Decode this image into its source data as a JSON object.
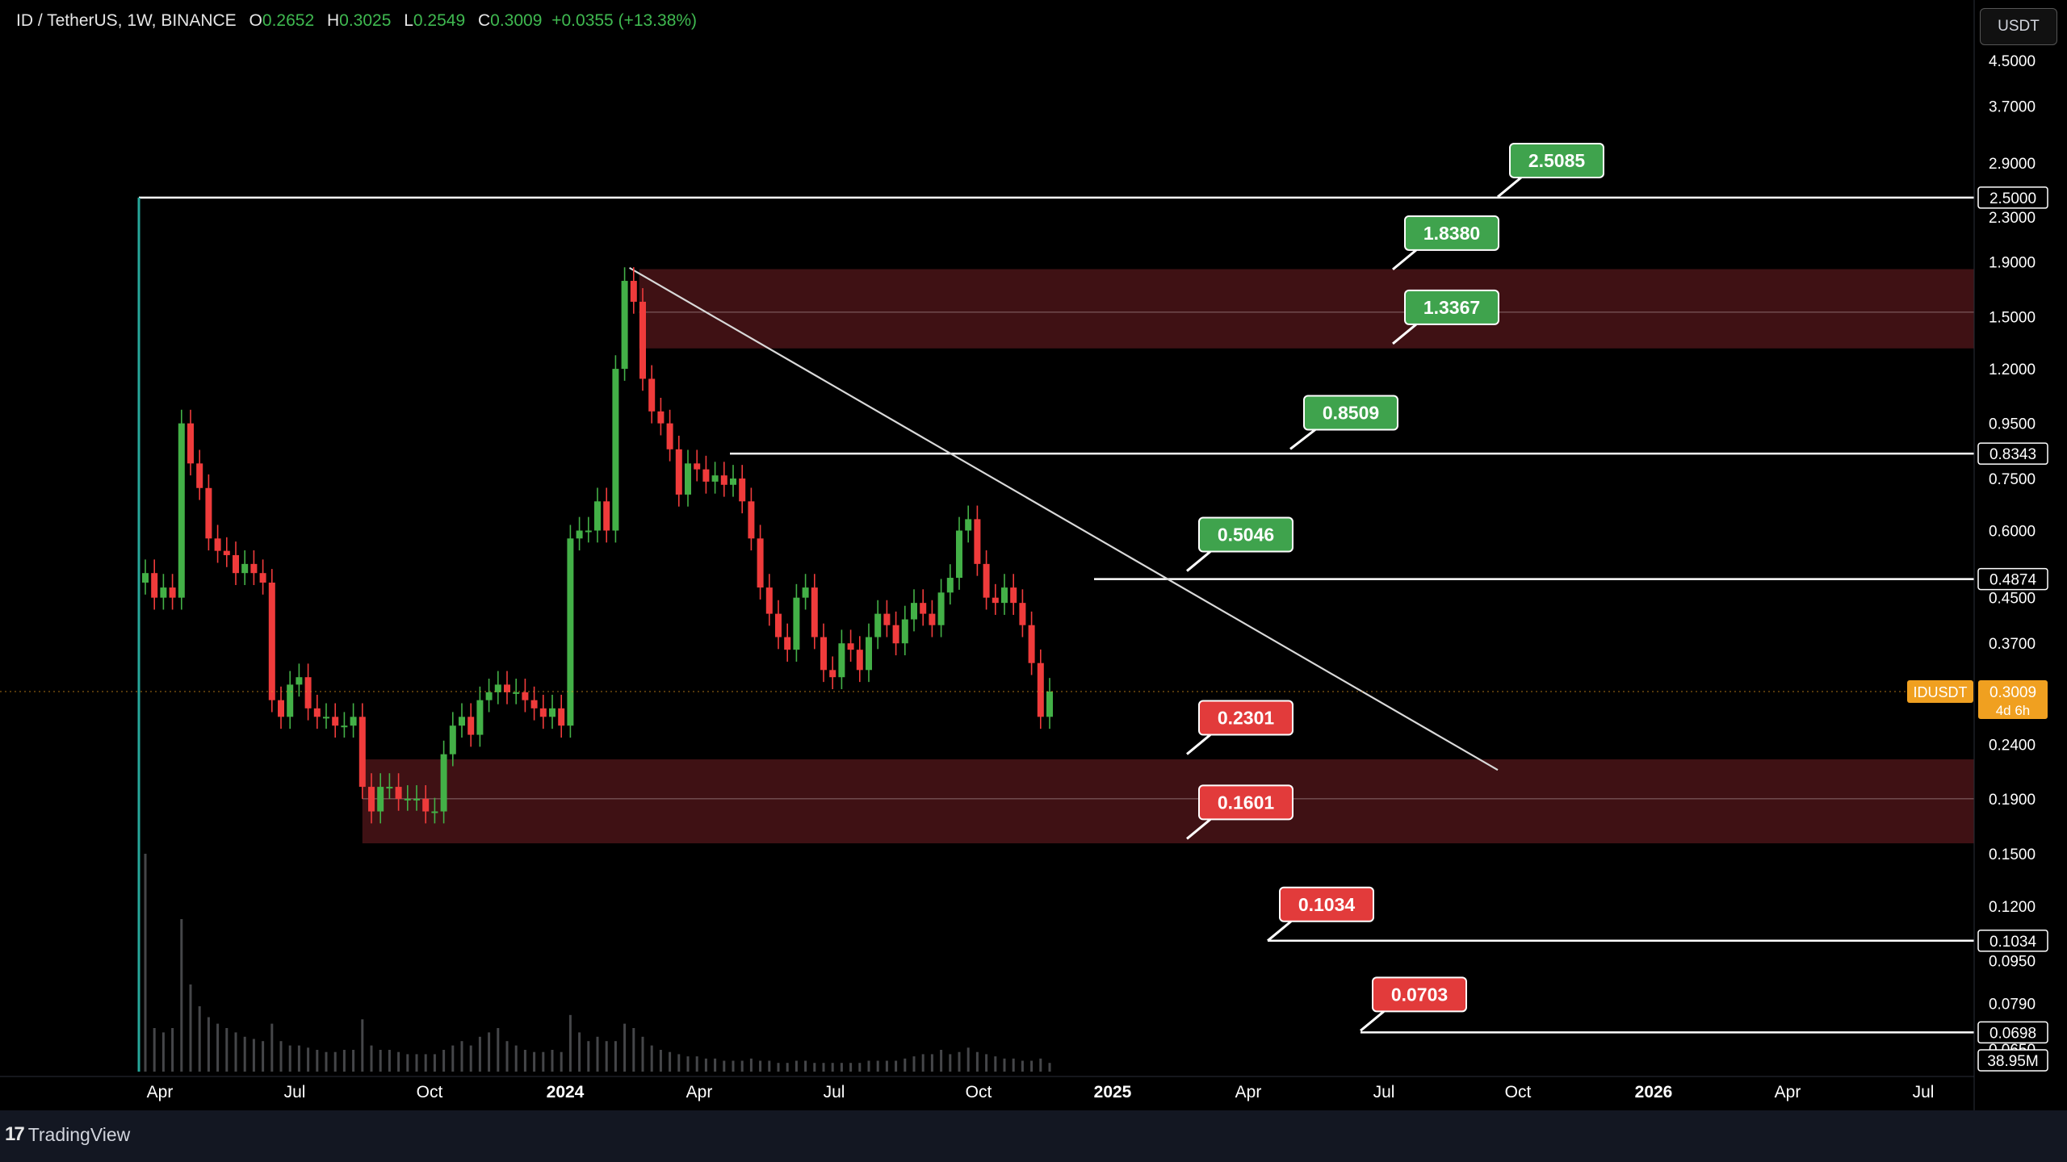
{
  "legend": {
    "symbol": "ID / TetherUS, 1W, BINANCE",
    "open_label": "O",
    "open": "0.2652",
    "high_label": "H",
    "high": "0.3025",
    "low_label": "L",
    "low": "0.2549",
    "close_label": "C",
    "close": "0.3009",
    "change": "+0.0355 (+13.38%)"
  },
  "currency_button": "USDT",
  "brand": {
    "logo": "17",
    "name": "TradingView"
  },
  "chart_data": {
    "type": "candlestick",
    "symbol": "IDUSDT",
    "scale": "log",
    "y_ticks": [
      {
        "value": 4.5,
        "label": "4.5000"
      },
      {
        "value": 3.7,
        "label": "3.7000"
      },
      {
        "value": 2.9,
        "label": "2.9000"
      },
      {
        "value": 2.3,
        "label": "2.3000"
      },
      {
        "value": 1.9,
        "label": "1.9000"
      },
      {
        "value": 1.5,
        "label": "1.5000"
      },
      {
        "value": 1.2,
        "label": "1.2000"
      },
      {
        "value": 0.95,
        "label": "0.9500"
      },
      {
        "value": 0.75,
        "label": "0.7500"
      },
      {
        "value": 0.6,
        "label": "0.6000"
      },
      {
        "value": 0.45,
        "label": "0.4500"
      },
      {
        "value": 0.37,
        "label": "0.3700"
      },
      {
        "value": 0.24,
        "label": "0.2400"
      },
      {
        "value": 0.19,
        "label": "0.1900"
      },
      {
        "value": 0.15,
        "label": "0.1500"
      },
      {
        "value": 0.12,
        "label": "0.1200"
      },
      {
        "value": 0.095,
        "label": "0.0950"
      },
      {
        "value": 0.079,
        "label": "0.0790"
      },
      {
        "value": 0.065,
        "label": "0.0650"
      }
    ],
    "x_ticks": [
      "Apr",
      "Jul",
      "Oct",
      "2024",
      "Apr",
      "Jul",
      "Oct",
      "2025",
      "Apr",
      "Jul",
      "Oct",
      "2026",
      "Apr",
      "Jul"
    ],
    "price_label": {
      "symbol": "IDUSDT",
      "value": "0.3009",
      "countdown": "4d 6h",
      "y": 0.3009,
      "color": "#f0a020"
    },
    "volume_label": "38.95M",
    "horizontal_levels": [
      {
        "y": 2.5,
        "label": "2.5000"
      },
      {
        "y": 0.8343,
        "label": "0.8343"
      },
      {
        "y": 0.4874,
        "label": "0.4874"
      },
      {
        "y": 0.1034,
        "label": "0.1034"
      },
      {
        "y": 0.0698,
        "label": "0.0698"
      }
    ],
    "zones": [
      {
        "y_low": 1.31,
        "y_high": 1.84,
        "mid": 1.53,
        "color": "#4a1418"
      },
      {
        "y_low": 0.157,
        "y_high": 0.225,
        "mid": 0.19,
        "color": "#4a1418"
      }
    ],
    "trendline": {
      "start_week": 0,
      "start_y": 1.85,
      "end_week": 81,
      "end_y": 0.215
    },
    "targets": [
      {
        "label": "2.5085",
        "y": 2.5085,
        "kind": "up"
      },
      {
        "label": "1.8380",
        "y": 1.838,
        "kind": "up"
      },
      {
        "label": "1.3367",
        "y": 1.3367,
        "kind": "up"
      },
      {
        "label": "0.8509",
        "y": 0.8509,
        "kind": "up"
      },
      {
        "label": "0.5046",
        "y": 0.5046,
        "kind": "up"
      },
      {
        "label": "0.2301",
        "y": 0.2301,
        "kind": "down"
      },
      {
        "label": "0.1601",
        "y": 0.1601,
        "kind": "down"
      },
      {
        "label": "0.1034",
        "y": 0.1034,
        "kind": "down"
      },
      {
        "label": "0.0703",
        "y": 0.0703,
        "kind": "down"
      }
    ],
    "colors": {
      "up": "#26a69a",
      "up_bright": "#43b047",
      "down": "#ef3b3b",
      "up_target": "#3fa34d",
      "down_target": "#e23b3b"
    },
    "candles_close": [
      0.5,
      0.45,
      0.47,
      0.45,
      0.95,
      0.8,
      0.72,
      0.58,
      0.55,
      0.54,
      0.5,
      0.52,
      0.5,
      0.48,
      0.29,
      0.27,
      0.31,
      0.32,
      0.28,
      0.27,
      0.27,
      0.26,
      0.26,
      0.27,
      0.2,
      0.18,
      0.2,
      0.2,
      0.19,
      0.19,
      0.19,
      0.18,
      0.18,
      0.23,
      0.26,
      0.27,
      0.25,
      0.29,
      0.3,
      0.31,
      0.3,
      0.3,
      0.29,
      0.28,
      0.27,
      0.28,
      0.26,
      0.58,
      0.6,
      0.6,
      0.68,
      0.6,
      1.2,
      1.75,
      1.6,
      1.15,
      1.0,
      0.95,
      0.85,
      0.7,
      0.8,
      0.78,
      0.74,
      0.76,
      0.73,
      0.75,
      0.68,
      0.58,
      0.47,
      0.42,
      0.38,
      0.36,
      0.45,
      0.47,
      0.38,
      0.33,
      0.32,
      0.37,
      0.36,
      0.33,
      0.38,
      0.42,
      0.4,
      0.37,
      0.41,
      0.44,
      0.42,
      0.4,
      0.46,
      0.49,
      0.6,
      0.63,
      0.52,
      0.45,
      0.44,
      0.47,
      0.44,
      0.4,
      0.34,
      0.27,
      0.3009
    ],
    "volumes": [
      100,
      20,
      18,
      20,
      70,
      40,
      30,
      25,
      22,
      20,
      18,
      16,
      15,
      14,
      22,
      14,
      12,
      12,
      11,
      10,
      9,
      9,
      10,
      10,
      24,
      12,
      10,
      10,
      9,
      8,
      8,
      8,
      8,
      10,
      12,
      14,
      12,
      16,
      18,
      20,
      14,
      12,
      10,
      9,
      9,
      10,
      9,
      26,
      18,
      14,
      16,
      14,
      14,
      22,
      20,
      16,
      12,
      10,
      9,
      8,
      7,
      7,
      6,
      6,
      5,
      5,
      5,
      6,
      5,
      5,
      4,
      4,
      5,
      5,
      4,
      4,
      4,
      4,
      4,
      4,
      5,
      5,
      5,
      5,
      6,
      7,
      8,
      8,
      10,
      8,
      9,
      11,
      9,
      8,
      7,
      6,
      6,
      5,
      5,
      6,
      4
    ]
  }
}
